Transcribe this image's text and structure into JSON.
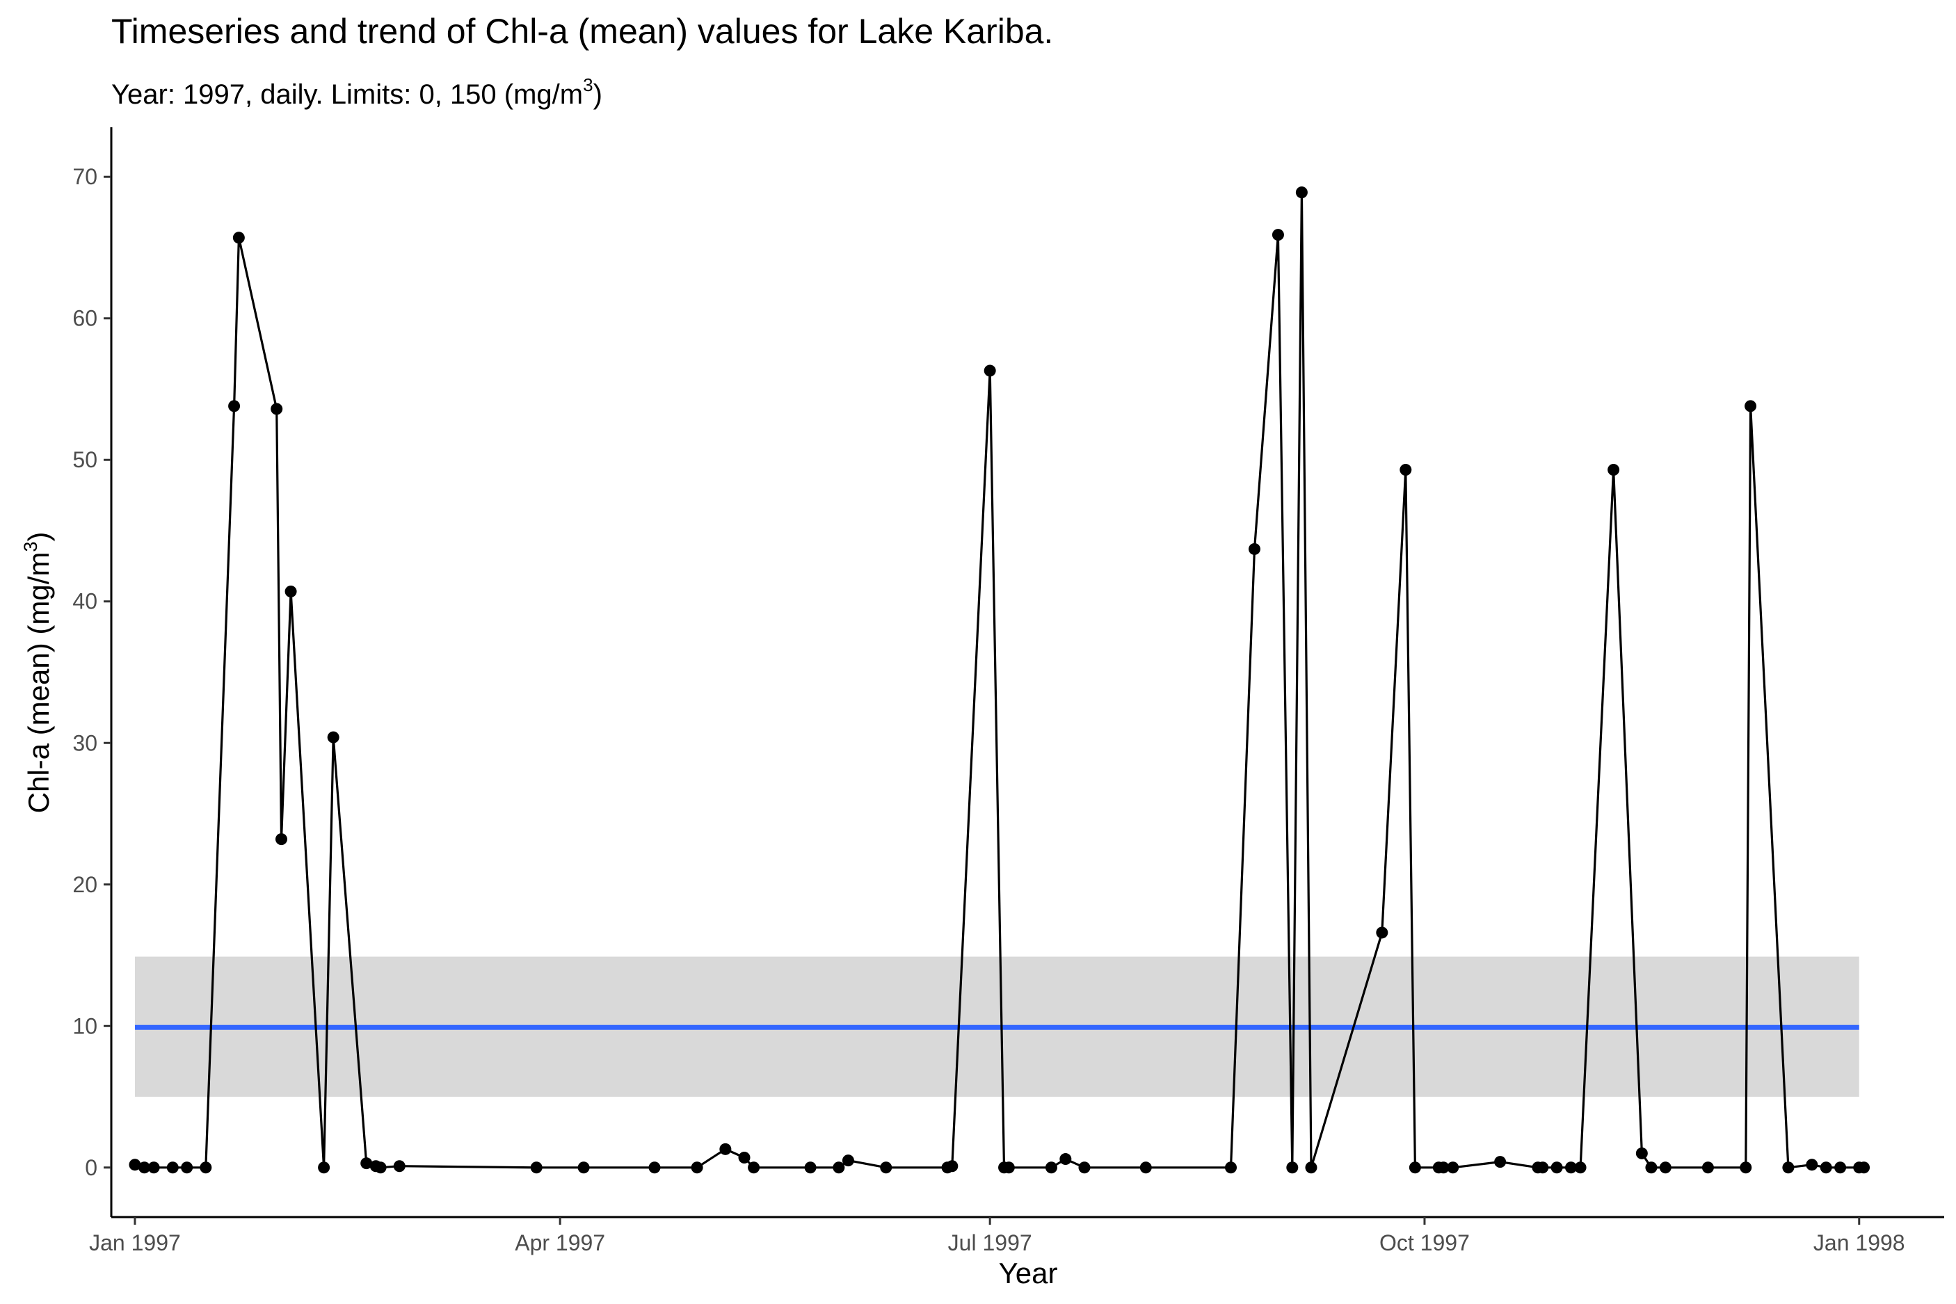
{
  "chart_data": {
    "type": "line",
    "title": "Timeseries and trend of Chl-a (mean) values for Lake Kariba.",
    "subtitle": "Year: 1997, daily. Limits: 0, 150 (mg/m",
    "subtitle_sup": "3",
    "subtitle_end": ")",
    "xlabel": "Year",
    "ylabel": "Chl-a (mean) (mg/m",
    "ylabel_sup": "3",
    "ylabel_end": ")",
    "xlim": [
      "1996-12-27",
      "1998-01-19"
    ],
    "ylim": [
      -3.5,
      73.5
    ],
    "x_ticks": [
      {
        "date": "1997-01-01",
        "label": "Jan 1997"
      },
      {
        "date": "1997-04-01",
        "label": "Apr 1997"
      },
      {
        "date": "1997-07-01",
        "label": "Jul 1997"
      },
      {
        "date": "1997-10-01",
        "label": "Oct 1997"
      },
      {
        "date": "1998-01-01",
        "label": "Jan 1998"
      }
    ],
    "y_ticks": [
      0,
      10,
      20,
      30,
      40,
      50,
      60,
      70
    ],
    "grid": false,
    "series": [
      {
        "type": "line+points",
        "color": "#000000",
        "x": [
          "1997-01-01",
          "1997-01-03",
          "1997-01-05",
          "1997-01-09",
          "1997-01-12",
          "1997-01-16",
          "1997-01-22",
          "1997-01-23",
          "1997-01-31",
          "1997-02-01",
          "1997-02-03",
          "1997-02-10",
          "1997-02-12",
          "1997-02-19",
          "1997-02-21",
          "1997-02-22",
          "1997-02-26",
          "1997-03-27",
          "1997-04-06",
          "1997-04-21",
          "1997-04-30",
          "1997-05-06",
          "1997-05-10",
          "1997-05-12",
          "1997-05-24",
          "1997-05-30",
          "1997-06-01",
          "1997-06-09",
          "1997-06-22",
          "1997-06-23",
          "1997-07-01",
          "1997-07-04",
          "1997-07-05",
          "1997-07-14",
          "1997-07-17",
          "1997-07-21",
          "1997-08-03",
          "1997-08-21",
          "1997-08-26",
          "1997-08-31",
          "1997-09-03",
          "1997-09-05",
          "1997-09-07",
          "1997-09-22",
          "1997-09-27",
          "1997-09-29",
          "1997-10-04",
          "1997-10-05",
          "1997-10-07",
          "1997-10-17",
          "1997-10-25",
          "1997-10-26",
          "1997-10-29",
          "1997-11-01",
          "1997-11-03",
          "1997-11-10",
          "1997-11-16",
          "1997-11-18",
          "1997-11-21",
          "1997-11-30",
          "1997-12-08",
          "1997-12-09",
          "1997-12-17",
          "1997-12-22",
          "1997-12-25",
          "1997-12-28",
          "1998-01-01",
          "1998-01-02"
        ],
        "y": [
          0.2,
          0,
          0,
          0,
          0,
          0,
          53.8,
          65.7,
          53.6,
          23.2,
          40.7,
          0,
          30.4,
          0.3,
          0.1,
          0,
          0.1,
          0,
          0,
          0,
          0,
          1.3,
          0.7,
          0,
          0,
          0,
          0.5,
          0,
          0,
          0.1,
          56.3,
          0,
          0,
          0,
          0.6,
          0,
          0,
          0,
          43.7,
          65.9,
          0,
          68.9,
          0,
          16.6,
          49.3,
          0,
          0,
          0,
          0,
          0.4,
          0,
          0,
          0,
          0,
          0,
          49.3,
          1.0,
          0,
          0,
          0,
          0,
          53.8,
          0,
          0.2,
          0,
          0,
          0,
          0
        ]
      }
    ],
    "trend": {
      "color": "#3366FF",
      "x": [
        "1997-01-01",
        "1998-01-01"
      ],
      "y": [
        9.9,
        9.9
      ],
      "ribbon_low": 5.0,
      "ribbon_high": 14.9,
      "ribbon_color": "#d9d9d9"
    }
  }
}
